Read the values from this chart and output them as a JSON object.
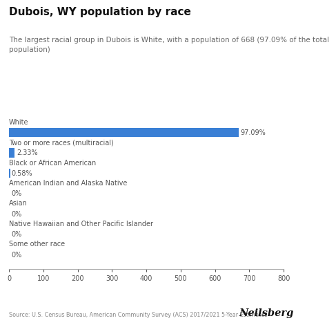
{
  "title": "Dubois, WY population by race",
  "subtitle": "The largest racial group in Dubois is White, with a population of 668 (97.09% of the total\npopulation)",
  "categories": [
    "White",
    "Two or more races (multiracial)",
    "Black or African American",
    "American Indian and Alaska Native",
    "Asian",
    "Native Hawaiian and Other Pacific Islander",
    "Some other race"
  ],
  "values": [
    668,
    16,
    4,
    0,
    0,
    0,
    0
  ],
  "percentages": [
    "97.09%",
    "2.33%",
    "0.58%",
    "0%",
    "0%",
    "0%",
    "0%"
  ],
  "bar_color": "#3a7fd5",
  "xlim": [
    0,
    800
  ],
  "xticks": [
    0,
    100,
    200,
    300,
    400,
    500,
    600,
    700,
    800
  ],
  "source_text": "Source: U.S. Census Bureau, American Community Survey (ACS) 2017/2021 5-Year Estimates",
  "brand": "Neilsberg",
  "background_color": "#ffffff",
  "title_fontsize": 11,
  "subtitle_fontsize": 7.5,
  "category_fontsize": 7,
  "pct_fontsize": 7,
  "tick_fontsize": 7,
  "bar_height": 0.45
}
